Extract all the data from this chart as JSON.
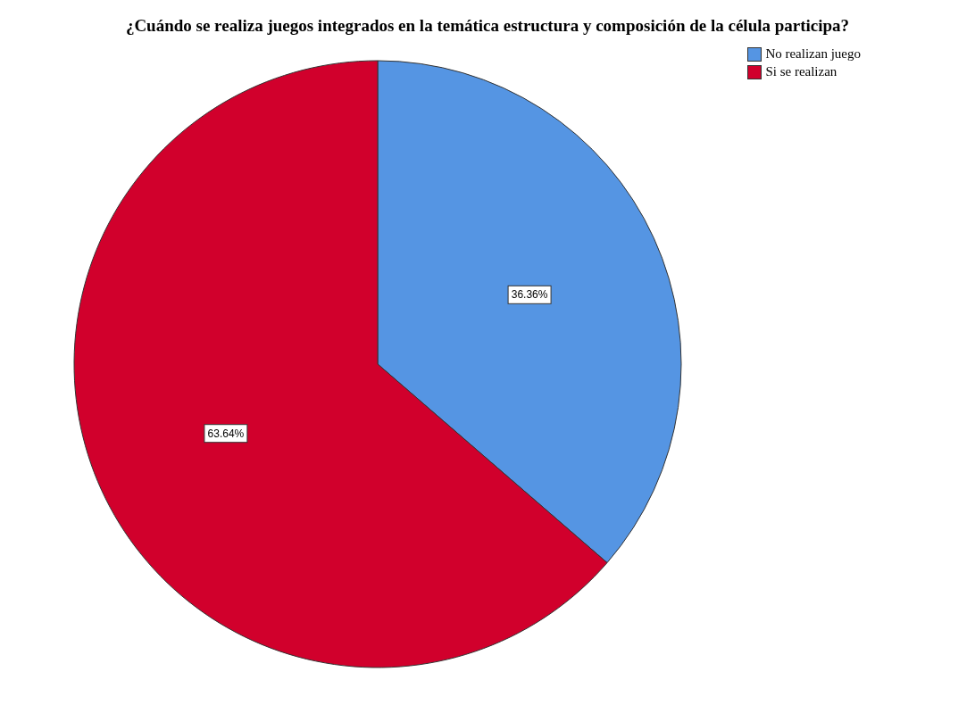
{
  "chart_data": {
    "type": "pie",
    "title": "¿Cuándo se realiza juegos integrados en la temática estructura y composición de la célula participa?",
    "categories": [
      "No realizan juego",
      "Si se realizan"
    ],
    "values": [
      36.36,
      63.64
    ],
    "colors": [
      "#5595e3",
      "#d1002c"
    ],
    "value_labels": [
      "36.36%",
      "63.64%"
    ],
    "legend": "top right"
  }
}
